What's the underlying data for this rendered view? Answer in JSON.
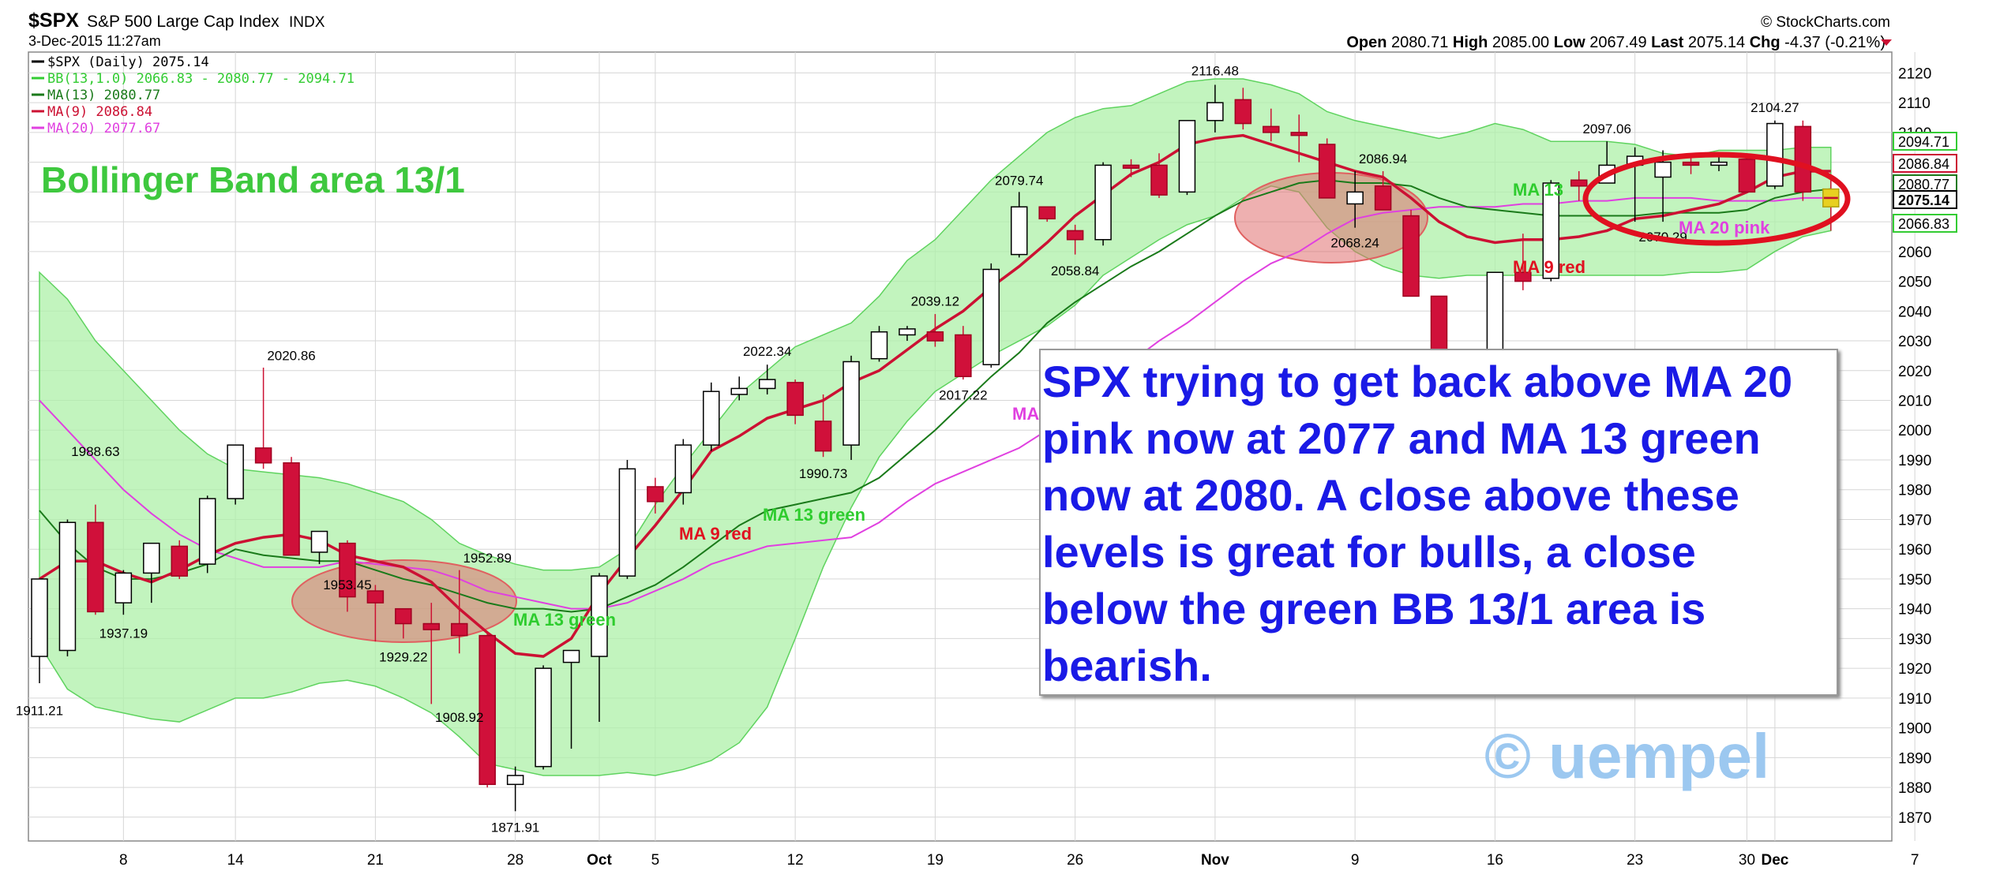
{
  "header": {
    "symbol": "$SPX",
    "index_name": "S&P 500 Large Cap Index",
    "exchange": "INDX",
    "timestamp": "3-Dec-2015 11:27am",
    "copyright": "© StockCharts.com",
    "ohlc": {
      "open_label": "Open",
      "open": "2080.71",
      "high_label": "High",
      "high": "2085.00",
      "low_label": "Low",
      "low": "2067.49",
      "last_label": "Last",
      "last": "2075.14",
      "chg_label": "Chg",
      "chg": "-4.37 (-0.21%)"
    }
  },
  "legend": [
    {
      "text": "$SPX (Daily) 2075.14",
      "color": "#000000"
    },
    {
      "text": "BB(13,1.0) 2066.83 - 2080.77 - 2094.71",
      "color": "#33cc33"
    },
    {
      "text": "MA(13) 2080.77",
      "color": "#1a7a1a"
    },
    {
      "text": "MA(9) 2086.84",
      "color": "#cc1133"
    },
    {
      "text": "MA(20) 2077.67",
      "color": "#e040e0"
    }
  ],
  "annotations": {
    "bb_title": "Bollinger Band area 13/1",
    "ma13_label_1": "MA 13 green",
    "ma13_label_2": "MA 13 green",
    "ma13_label_3": "MA 13",
    "ma9_label_1": "MA 9 red",
    "ma9_label_2": "MA 9 red",
    "ma20_label_1": "MA 20 pink",
    "ma20_label_partial": "MA",
    "callout": "SPX trying to get back above MA 20 pink now at 2077 and MA 13 green now at 2080. A close above these levels is great for bulls, a close below the green BB 13/1 area is bearish.",
    "watermark": "© uempel"
  },
  "right_axis_tags": [
    {
      "value": "2094.71",
      "color": "#33cc33"
    },
    {
      "value": "2086.84",
      "color": "#cc1133"
    },
    {
      "value": "2080.77",
      "color": "#1a7a1a"
    },
    {
      "value": "2075.14",
      "color": "#000000"
    },
    {
      "value": "2066.83",
      "color": "#33cc33"
    }
  ],
  "chart_data": {
    "type": "candlestick",
    "ylim": [
      1862,
      2127
    ],
    "yticks": [
      1870,
      1880,
      1890,
      1900,
      1910,
      1920,
      1930,
      1940,
      1950,
      1960,
      1970,
      1980,
      1990,
      2000,
      2010,
      2020,
      2030,
      2040,
      2050,
      2060,
      2070,
      2080,
      2090,
      2100,
      2110,
      2120
    ],
    "xticks": [
      {
        "label": "8",
        "date": "2015-09-08"
      },
      {
        "label": "14",
        "date": "2015-09-14"
      },
      {
        "label": "21",
        "date": "2015-09-21"
      },
      {
        "label": "28",
        "date": "2015-09-28"
      },
      {
        "label": "Oct",
        "date": "2015-10-01"
      },
      {
        "label": "5",
        "date": "2015-10-05"
      },
      {
        "label": "12",
        "date": "2015-10-12"
      },
      {
        "label": "19",
        "date": "2015-10-19"
      },
      {
        "label": "26",
        "date": "2015-10-26"
      },
      {
        "label": "Nov",
        "date": "2015-11-02"
      },
      {
        "label": "9",
        "date": "2015-11-09"
      },
      {
        "label": "16",
        "date": "2015-11-16"
      },
      {
        "label": "23",
        "date": "2015-11-23"
      },
      {
        "label": "30",
        "date": "2015-11-30"
      },
      {
        "label": "Dec",
        "date": "2015-12-01"
      },
      {
        "label": "7",
        "date": "2015-12-07"
      }
    ],
    "candles": [
      {
        "date": "2015-09-02",
        "o": 1924,
        "h": 1949,
        "l": 1915,
        "c": 1950
      },
      {
        "date": "2015-09-03",
        "o": 1926,
        "h": 1970,
        "l": 1924,
        "c": 1969
      },
      {
        "date": "2015-09-04",
        "o": 1969,
        "h": 1975,
        "l": 1938,
        "c": 1939
      },
      {
        "date": "2015-09-08",
        "o": 1942,
        "h": 1953,
        "l": 1938,
        "c": 1952
      },
      {
        "date": "2015-09-09",
        "o": 1952,
        "h": 1962,
        "l": 1942,
        "c": 1962
      },
      {
        "date": "2015-09-10",
        "o": 1961,
        "h": 1963,
        "l": 1950,
        "c": 1951
      },
      {
        "date": "2015-09-11",
        "o": 1955,
        "h": 1978,
        "l": 1952,
        "c": 1977
      },
      {
        "date": "2015-09-14",
        "o": 1977,
        "h": 1994,
        "l": 1975,
        "c": 1995
      },
      {
        "date": "2015-09-15",
        "o": 1994,
        "h": 2021,
        "l": 1987,
        "c": 1989
      },
      {
        "date": "2015-09-16",
        "o": 1989,
        "h": 1991,
        "l": 1960,
        "c": 1958
      },
      {
        "date": "2015-09-17",
        "o": 1959,
        "h": 1965,
        "l": 1955,
        "c": 1966
      },
      {
        "date": "2015-09-18",
        "o": 1962,
        "h": 1963,
        "l": 1939,
        "c": 1944
      },
      {
        "date": "2015-09-21",
        "o": 1946,
        "h": 1948,
        "l": 1929,
        "c": 1942
      },
      {
        "date": "2015-09-22",
        "o": 1940,
        "h": 1940,
        "l": 1930,
        "c": 1935
      },
      {
        "date": "2015-09-23",
        "o": 1935,
        "h": 1942,
        "l": 1908,
        "c": 1933
      },
      {
        "date": "2015-09-24",
        "o": 1935,
        "h": 1953,
        "l": 1925,
        "c": 1931
      },
      {
        "date": "2015-09-25",
        "o": 1931,
        "h": 1932,
        "l": 1880,
        "c": 1881
      },
      {
        "date": "2015-09-28",
        "o": 1881,
        "h": 1887,
        "l": 1872,
        "c": 1884
      },
      {
        "date": "2015-09-29",
        "o": 1887,
        "h": 1921,
        "l": 1886,
        "c": 1920
      },
      {
        "date": "2015-09-30",
        "o": 1922,
        "h": 1925,
        "l": 1893,
        "c": 1926
      },
      {
        "date": "2015-10-01",
        "o": 1924,
        "h": 1952,
        "l": 1902,
        "c": 1951
      },
      {
        "date": "2015-10-02",
        "o": 1951,
        "h": 1990,
        "l": 1950,
        "c": 1987
      },
      {
        "date": "2015-10-05",
        "o": 1981,
        "h": 1984,
        "l": 1972,
        "c": 1976
      },
      {
        "date": "2015-10-06",
        "o": 1979,
        "h": 1997,
        "l": 1975,
        "c": 1995
      },
      {
        "date": "2015-10-07",
        "o": 1995,
        "h": 2016,
        "l": 1993,
        "c": 2013
      },
      {
        "date": "2015-10-08",
        "o": 2012,
        "h": 2018,
        "l": 2010,
        "c": 2014
      },
      {
        "date": "2015-10-09",
        "o": 2014,
        "h": 2022,
        "l": 2012,
        "c": 2017
      },
      {
        "date": "2015-10-12",
        "o": 2016,
        "h": 2017,
        "l": 2002,
        "c": 2005
      },
      {
        "date": "2015-10-13",
        "o": 2003,
        "h": 2012,
        "l": 1991,
        "c": 1993
      },
      {
        "date": "2015-10-14",
        "o": 1995,
        "h": 2025,
        "l": 1990,
        "c": 2023
      },
      {
        "date": "2015-10-15",
        "o": 2024,
        "h": 2035,
        "l": 2023,
        "c": 2033
      },
      {
        "date": "2015-10-16",
        "o": 2032,
        "h": 2035,
        "l": 2030,
        "c": 2034
      },
      {
        "date": "2015-10-19",
        "o": 2033,
        "h": 2039,
        "l": 2028,
        "c": 2030
      },
      {
        "date": "2015-10-20",
        "o": 2032,
        "h": 2035,
        "l": 2017,
        "c": 2018
      },
      {
        "date": "2015-10-21",
        "o": 2022,
        "h": 2056,
        "l": 2021,
        "c": 2054
      },
      {
        "date": "2015-10-22",
        "o": 2059,
        "h": 2080,
        "l": 2058,
        "c": 2075
      },
      {
        "date": "2015-10-23",
        "o": 2075,
        "h": 2075,
        "l": 2070,
        "c": 2071
      },
      {
        "date": "2015-10-26",
        "o": 2067,
        "h": 2069,
        "l": 2059,
        "c": 2064
      },
      {
        "date": "2015-10-27",
        "o": 2064,
        "h": 2090,
        "l": 2062,
        "c": 2089
      },
      {
        "date": "2015-10-28",
        "o": 2089,
        "h": 2091,
        "l": 2085,
        "c": 2088
      },
      {
        "date": "2015-10-29",
        "o": 2089,
        "h": 2093,
        "l": 2078,
        "c": 2079
      },
      {
        "date": "2015-10-30",
        "o": 2080,
        "h": 2104,
        "l": 2079,
        "c": 2104
      },
      {
        "date": "2015-11-02",
        "o": 2104,
        "h": 2116,
        "l": 2100,
        "c": 2110
      },
      {
        "date": "2015-11-03",
        "o": 2111,
        "h": 2115,
        "l": 2101,
        "c": 2103
      },
      {
        "date": "2015-11-04",
        "o": 2102,
        "h": 2108,
        "l": 2097,
        "c": 2100
      },
      {
        "date": "2015-11-05",
        "o": 2100,
        "h": 2106,
        "l": 2090,
        "c": 2099
      },
      {
        "date": "2015-11-06",
        "o": 2096,
        "h": 2098,
        "l": 2078,
        "c": 2078
      },
      {
        "date": "2015-11-09",
        "o": 2076,
        "h": 2087,
        "l": 2068,
        "c": 2080
      },
      {
        "date": "2015-11-10",
        "o": 2082,
        "h": 2087,
        "l": 2075,
        "c": 2074
      },
      {
        "date": "2015-11-11",
        "o": 2072,
        "h": 2074,
        "l": 2045,
        "c": 2045
      },
      {
        "date": "2015-11-12",
        "o": 2045,
        "h": 2045,
        "l": 2023,
        "c": 2024
      },
      {
        "date": "2015-11-13",
        "o": 2022,
        "h": 2022,
        "l": 2019,
        "c": 2020
      },
      {
        "date": "2015-11-16",
        "o": 2022,
        "h": 2053,
        "l": 2019,
        "c": 2053
      },
      {
        "date": "2015-11-17",
        "o": 2053,
        "h": 2066,
        "l": 2047,
        "c": 2050
      },
      {
        "date": "2015-11-18",
        "o": 2051,
        "h": 2084,
        "l": 2050,
        "c": 2083
      },
      {
        "date": "2015-11-19",
        "o": 2084,
        "h": 2087,
        "l": 2077,
        "c": 2082
      },
      {
        "date": "2015-11-20",
        "o": 2083,
        "h": 2097,
        "l": 2083,
        "c": 2089
      },
      {
        "date": "2015-11-23",
        "o": 2089,
        "h": 2095,
        "l": 2070,
        "c": 2092
      },
      {
        "date": "2015-11-24",
        "o": 2085,
        "h": 2094,
        "l": 2070,
        "c": 2090
      },
      {
        "date": "2015-11-25",
        "o": 2090,
        "h": 2093,
        "l": 2086,
        "c": 2089
      },
      {
        "date": "2015-11-27",
        "o": 2089,
        "h": 2093,
        "l": 2087,
        "c": 2090
      },
      {
        "date": "2015-11-30",
        "o": 2091,
        "h": 2093,
        "l": 2080,
        "c": 2080
      },
      {
        "date": "2015-12-01",
        "o": 2082,
        "h": 2104,
        "l": 2081,
        "c": 2103
      },
      {
        "date": "2015-12-02",
        "o": 2102,
        "h": 2104,
        "l": 2077,
        "c": 2080
      },
      {
        "date": "2015-12-03",
        "o": 2081,
        "h": 2085,
        "l": 2067,
        "c": 2075
      }
    ],
    "price_labels": [
      {
        "date": "2015-09-02",
        "value": 1911.21,
        "pos": "below"
      },
      {
        "date": "2015-09-04",
        "value": 1988.63,
        "pos": "above"
      },
      {
        "date": "2015-09-08",
        "value": 1937.19,
        "pos": "below"
      },
      {
        "date": "2015-09-16",
        "value": 2020.86,
        "pos": "above"
      },
      {
        "date": "2015-09-18",
        "value": 1953.45,
        "pos": "below"
      },
      {
        "date": "2015-09-22",
        "value": 1929.22,
        "pos": "below"
      },
      {
        "date": "2015-09-24",
        "value": 1908.92,
        "pos": "below"
      },
      {
        "date": "2015-09-25",
        "value": 1952.89,
        "pos": "above"
      },
      {
        "date": "2015-09-28",
        "value": 1871.91,
        "pos": "below"
      },
      {
        "date": "2015-10-09",
        "value": 2022.34,
        "pos": "above"
      },
      {
        "date": "2015-10-13",
        "value": 1990.73,
        "pos": "below"
      },
      {
        "date": "2015-10-19",
        "value": 2039.12,
        "pos": "above"
      },
      {
        "date": "2015-10-20",
        "value": 2017.22,
        "pos": "below"
      },
      {
        "date": "2015-10-22",
        "value": 2079.74,
        "pos": "above"
      },
      {
        "date": "2015-10-26",
        "value": 2058.84,
        "pos": "below"
      },
      {
        "date": "2015-11-02",
        "value": 2116.48,
        "pos": "above"
      },
      {
        "date": "2015-11-09",
        "value": 2068.24,
        "pos": "below"
      },
      {
        "date": "2015-11-10",
        "value": 2086.94,
        "pos": "above"
      },
      {
        "date": "2015-11-20",
        "value": 2097.06,
        "pos": "above"
      },
      {
        "date": "2015-11-24",
        "value": 2070.29,
        "pos": "below"
      },
      {
        "date": "2015-12-01",
        "value": 2104.27,
        "pos": "above"
      }
    ],
    "bb_upper": [
      2053,
      2044,
      2030,
      2020,
      2010,
      2000,
      1992,
      1987,
      1986,
      1985,
      1984,
      1982,
      1979,
      1976,
      1970,
      1962,
      1958,
      1955,
      1953,
      1953,
      1954,
      1960,
      1975,
      1988,
      2000,
      2012,
      2020,
      2028,
      2032,
      2036,
      2045,
      2057,
      2064,
      2074,
      2084,
      2092,
      2100,
      2105,
      2108,
      2109,
      2113,
      2117,
      2118,
      2118,
      2116,
      2113,
      2107,
      2104,
      2102,
      2100,
      2098,
      2100,
      2103,
      2101,
      2097,
      2097,
      2097,
      2096,
      2093,
      2092,
      2094,
      2094,
      2094,
      2095,
      2095
    ],
    "bb_lower": [
      1928,
      1913,
      1907,
      1905,
      1903,
      1902,
      1906,
      1910,
      1910,
      1912,
      1915,
      1916,
      1914,
      1910,
      1905,
      1897,
      1888,
      1886,
      1884,
      1884,
      1884,
      1885,
      1884,
      1886,
      1889,
      1895,
      1907,
      1930,
      1954,
      1974,
      1991,
      2003,
      2013,
      2019,
      2025,
      2030,
      2035,
      2042,
      2052,
      2058,
      2064,
      2069,
      2072,
      2078,
      2082,
      2080,
      2068,
      2060,
      2055,
      2052,
      2051,
      2052,
      2052,
      2052,
      2052,
      2052,
      2052,
      2052,
      2052,
      2053,
      2053,
      2054,
      2060,
      2065,
      2067
    ],
    "ma13": [
      1973,
      1962,
      1954,
      1950,
      1950,
      1952,
      1955,
      1960,
      1958,
      1957,
      1956,
      1956,
      1953,
      1950,
      1948,
      1945,
      1942,
      1940,
      1940,
      1939,
      1940,
      1944,
      1948,
      1954,
      1961,
      1968,
      1973,
      1975,
      1977,
      1979,
      1984,
      1992,
      2000,
      2009,
      2018,
      2026,
      2036,
      2043,
      2049,
      2055,
      2060,
      2066,
      2072,
      2077,
      2080,
      2083,
      2084,
      2083,
      2083,
      2082,
      2078,
      2075,
      2074,
      2073,
      2072,
      2072,
      2072,
      2072,
      2073,
      2073,
      2073,
      2074,
      2078,
      2080,
      2081
    ],
    "ma9": [
      1950,
      1956,
      1956,
      1952,
      1949,
      1953,
      1958,
      1962,
      1964,
      1965,
      1963,
      1958,
      1956,
      1954,
      1949,
      1940,
      1932,
      1925,
      1924,
      1930,
      1945,
      1957,
      1968,
      1980,
      1993,
      1998,
      2004,
      2007,
      2010,
      2016,
      2020,
      2027,
      2034,
      2040,
      2048,
      2055,
      2063,
      2072,
      2079,
      2086,
      2090,
      2096,
      2098,
      2099,
      2096,
      2093,
      2090,
      2087,
      2085,
      2078,
      2070,
      2065,
      2063,
      2064,
      2064,
      2065,
      2067,
      2071,
      2072,
      2074,
      2076,
      2080,
      2085,
      2087,
      2087
    ],
    "ma20": [
      2010,
      2000,
      1990,
      1980,
      1972,
      1965,
      1960,
      1957,
      1954,
      1954,
      1954,
      1956,
      1955,
      1954,
      1953,
      1950,
      1946,
      1944,
      1942,
      1940,
      1940,
      1942,
      1946,
      1950,
      1955,
      1958,
      1961,
      1962,
      1963,
      1964,
      1969,
      1976,
      1982,
      1986,
      1990,
      1994,
      2000,
      2008,
      2016,
      2023,
      2030,
      2036,
      2043,
      2050,
      2056,
      2060,
      2066,
      2071,
      2073,
      2074,
      2075,
      2075,
      2075,
      2076,
      2076,
      2077,
      2077,
      2078,
      2078,
      2078,
      2077,
      2077,
      2077,
      2078,
      2078
    ]
  }
}
